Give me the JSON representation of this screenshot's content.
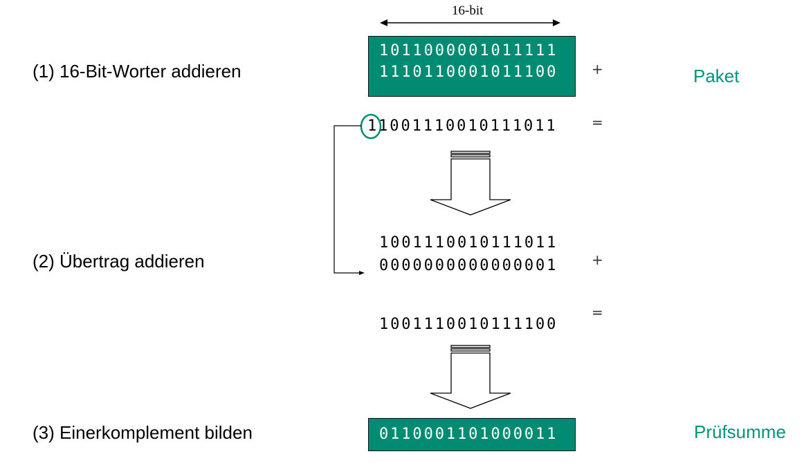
{
  "width_label": "16-bit",
  "steps": {
    "add_words": "(1) 16-Bit-Worter addieren",
    "add_carry": "(2) Übertrag addieren",
    "ones_complement": "(3) Einerkomplement bilden"
  },
  "packet": {
    "label": "Paket",
    "word1": "1011000001011111",
    "word2": "1110110001011100"
  },
  "sum1": {
    "carry_bit": "1",
    "rest": "1001110010111011"
  },
  "carry_addition": {
    "word": "1001110010111011",
    "carry_word": "0000000000000001"
  },
  "sum2": "1001110010111100",
  "checksum": {
    "label": "Prüfsumme",
    "value": "0110001101000011"
  },
  "operators": {
    "plus": "+",
    "equals": "="
  },
  "colors": {
    "accent": "#008b72",
    "label_text": "#00957a"
  }
}
